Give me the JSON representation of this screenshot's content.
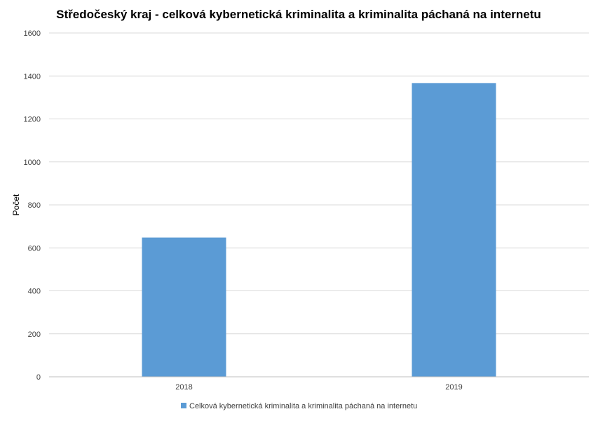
{
  "chart_data": {
    "type": "bar",
    "title": "Středočeský kraj - celková kybernetická kriminalita a kriminalita páchaná na internetu",
    "xlabel": "",
    "ylabel": "Počet",
    "categories": [
      "2018",
      "2019"
    ],
    "series": [
      {
        "name": "Celková kybernetická kriminalita a kriminalita páchaná na internetu",
        "values": [
          648,
          1367
        ],
        "color": "#5b9bd5"
      }
    ],
    "ylim": [
      0,
      1600
    ],
    "yticks": [
      "0",
      "200",
      "400",
      "600",
      "800",
      "1000",
      "1200",
      "1400",
      "1600"
    ],
    "grid": true,
    "legend_position": "bottom"
  }
}
